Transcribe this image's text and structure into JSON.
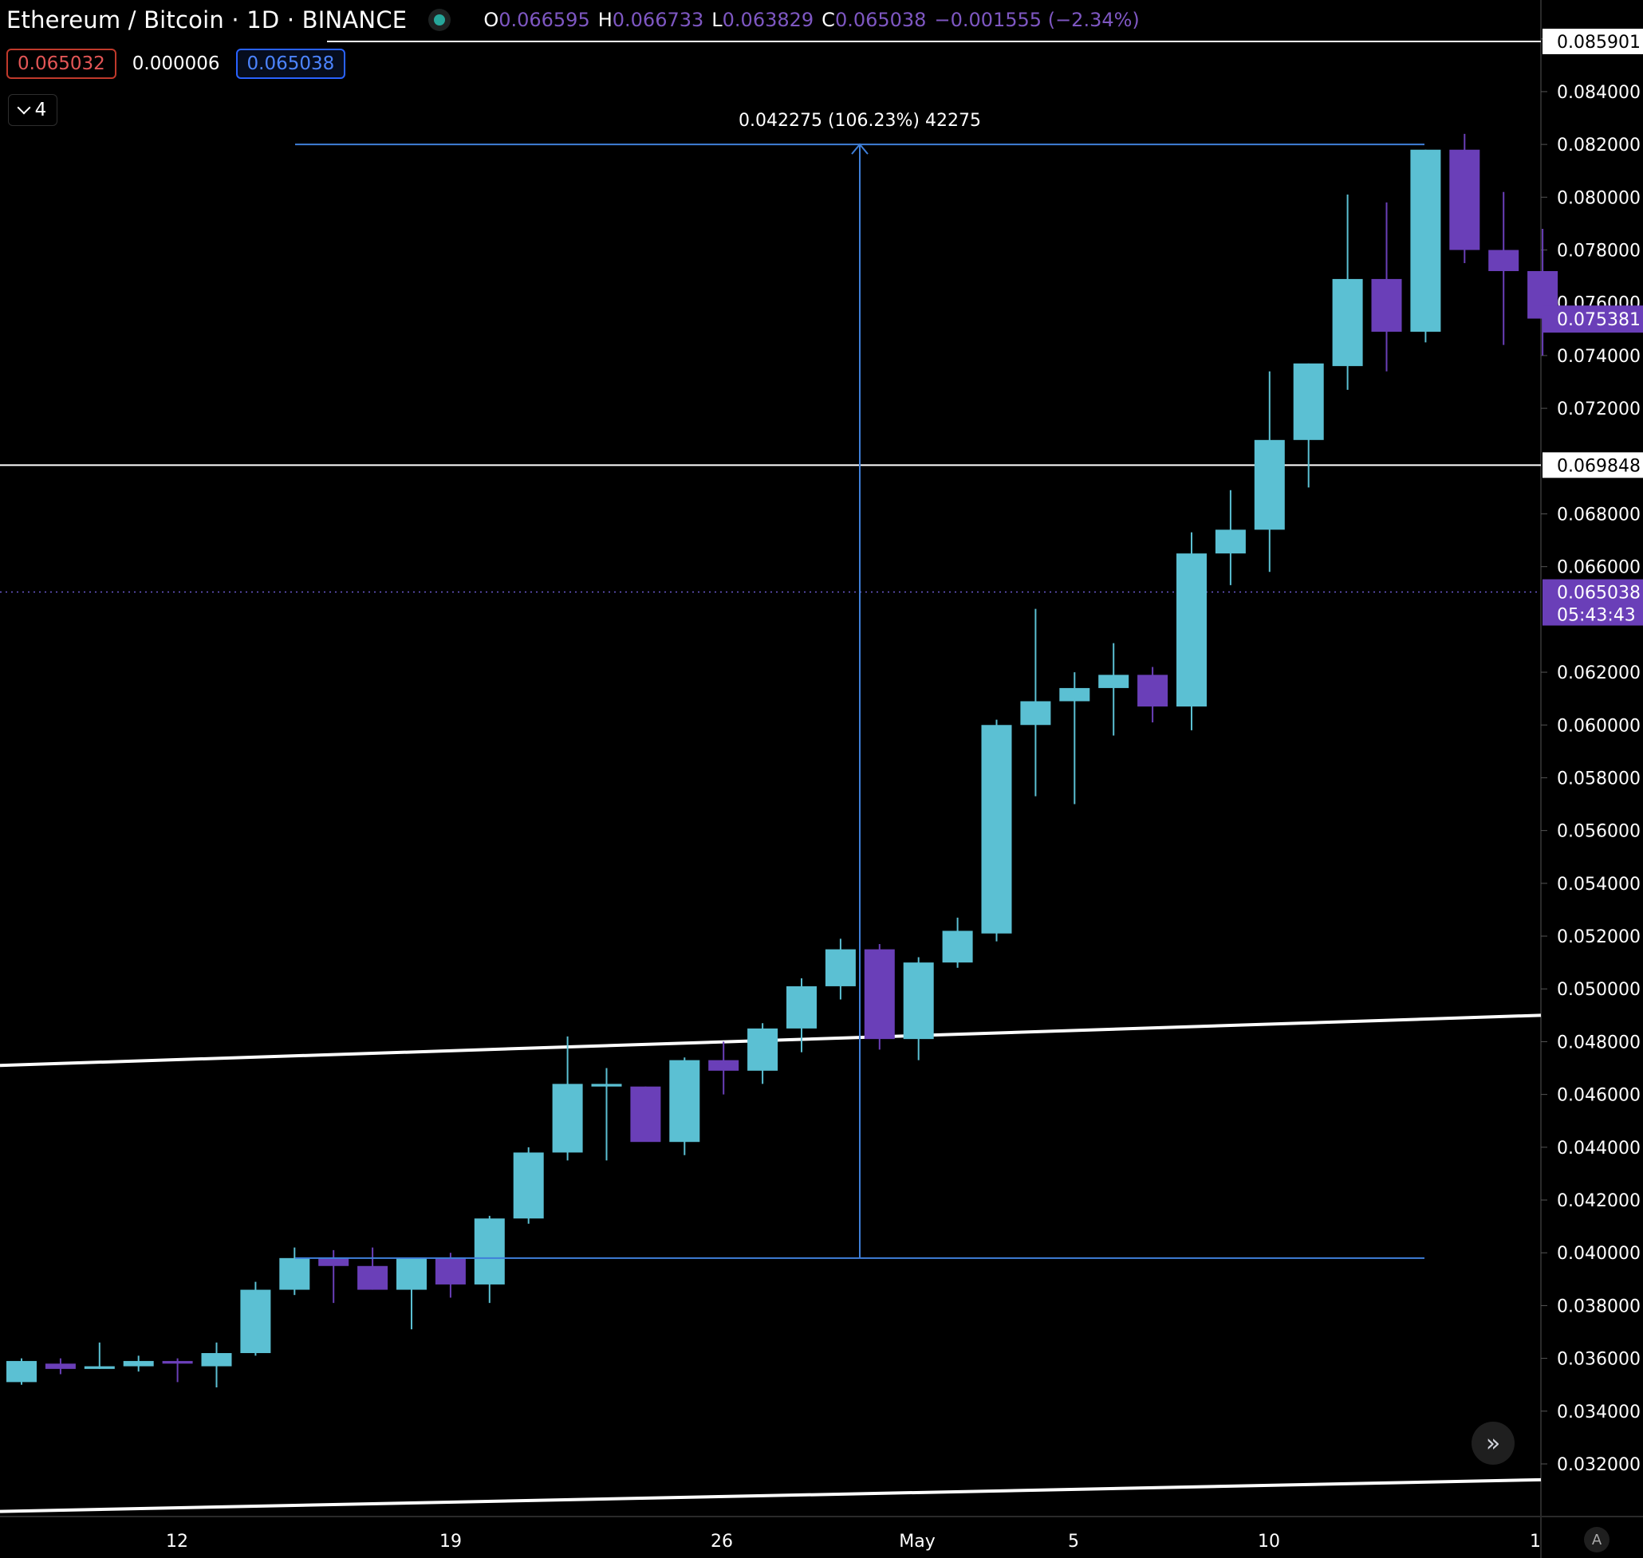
{
  "header": {
    "symbol": "Ethereum / Bitcoin",
    "sep1": "·",
    "interval": "1D",
    "sep2": "·",
    "exchange": "BINANCE",
    "open_label": "O",
    "open": "0.066595",
    "high_label": "H",
    "high": "0.066733",
    "low_label": "L",
    "low": "0.063829",
    "close_label": "C",
    "close": "0.065038",
    "change": "−0.001555 (−2.34%)"
  },
  "trade": {
    "bid": "0.065032",
    "spread": "0.000006",
    "ask": "0.065038"
  },
  "indicators_toggle": {
    "count": "4"
  },
  "colors": {
    "up": "#5bc0d3",
    "down": "#6a3fb8",
    "background": "#000000",
    "measure": "#3f7fd9",
    "price_tag": "#6a3fb8",
    "text": "#d1d4dc"
  },
  "icons": {
    "collapse": "chevron-down-icon",
    "scroll": "double-chevron-right-icon",
    "auto": "auto-scale-icon"
  },
  "chart_data": {
    "type": "candlestick",
    "x_labels": [
      "12",
      "19",
      "26",
      "May",
      "5",
      "10",
      "1"
    ],
    "ylim": [
      0.0305,
      0.0875
    ],
    "y_ticks": [
      "0.032000",
      "0.034000",
      "0.036000",
      "0.038000",
      "0.040000",
      "0.042000",
      "0.044000",
      "0.046000",
      "0.048000",
      "0.050000",
      "0.052000",
      "0.054000",
      "0.056000",
      "0.058000",
      "0.060000",
      "0.062000",
      "0.066000",
      "0.068000",
      "0.072000",
      "0.074000",
      "0.076000",
      "0.078000",
      "0.080000",
      "0.082000",
      "0.084000",
      "0.086000"
    ],
    "candles": [
      {
        "o": 0.0351,
        "h": 0.036,
        "l": 0.035,
        "c": 0.0359
      },
      {
        "o": 0.0358,
        "h": 0.036,
        "l": 0.0354,
        "c": 0.0356
      },
      {
        "o": 0.0356,
        "h": 0.0366,
        "l": 0.0356,
        "c": 0.0357
      },
      {
        "o": 0.0357,
        "h": 0.0361,
        "l": 0.0355,
        "c": 0.0359
      },
      {
        "o": 0.0359,
        "h": 0.036,
        "l": 0.0351,
        "c": 0.0358
      },
      {
        "o": 0.0357,
        "h": 0.0366,
        "l": 0.0349,
        "c": 0.0362
      },
      {
        "o": 0.0362,
        "h": 0.0389,
        "l": 0.0361,
        "c": 0.0386
      },
      {
        "o": 0.0386,
        "h": 0.0402,
        "l": 0.0384,
        "c": 0.0398
      },
      {
        "o": 0.0398,
        "h": 0.0401,
        "l": 0.0381,
        "c": 0.0395
      },
      {
        "o": 0.0395,
        "h": 0.0402,
        "l": 0.0386,
        "c": 0.0386
      },
      {
        "o": 0.0386,
        "h": 0.0398,
        "l": 0.0371,
        "c": 0.0398
      },
      {
        "o": 0.0398,
        "h": 0.04,
        "l": 0.0383,
        "c": 0.0388
      },
      {
        "o": 0.0388,
        "h": 0.0414,
        "l": 0.0381,
        "c": 0.0413
      },
      {
        "o": 0.0413,
        "h": 0.044,
        "l": 0.0411,
        "c": 0.0438
      },
      {
        "o": 0.0438,
        "h": 0.0482,
        "l": 0.0435,
        "c": 0.0464
      },
      {
        "o": 0.0463,
        "h": 0.047,
        "l": 0.0435,
        "c": 0.0464
      },
      {
        "o": 0.0463,
        "h": 0.0463,
        "l": 0.0443,
        "c": 0.0442
      },
      {
        "o": 0.0442,
        "h": 0.0474,
        "l": 0.0437,
        "c": 0.0473
      },
      {
        "o": 0.0473,
        "h": 0.048,
        "l": 0.046,
        "c": 0.0469
      },
      {
        "o": 0.0469,
        "h": 0.0487,
        "l": 0.0464,
        "c": 0.0485
      },
      {
        "o": 0.0485,
        "h": 0.0504,
        "l": 0.0476,
        "c": 0.0501
      },
      {
        "o": 0.0501,
        "h": 0.0519,
        "l": 0.0496,
        "c": 0.0515
      },
      {
        "o": 0.0515,
        "h": 0.0517,
        "l": 0.0477,
        "c": 0.0481
      },
      {
        "o": 0.0481,
        "h": 0.0512,
        "l": 0.0473,
        "c": 0.051
      },
      {
        "o": 0.051,
        "h": 0.0527,
        "l": 0.0508,
        "c": 0.0522
      },
      {
        "o": 0.0521,
        "h": 0.0602,
        "l": 0.0518,
        "c": 0.06
      },
      {
        "o": 0.06,
        "h": 0.0644,
        "l": 0.0573,
        "c": 0.0609
      },
      {
        "o": 0.0609,
        "h": 0.062,
        "l": 0.057,
        "c": 0.0614
      },
      {
        "o": 0.0614,
        "h": 0.0631,
        "l": 0.0596,
        "c": 0.0619
      },
      {
        "o": 0.0619,
        "h": 0.0622,
        "l": 0.0601,
        "c": 0.0607
      },
      {
        "o": 0.0607,
        "h": 0.0673,
        "l": 0.0598,
        "c": 0.0665
      },
      {
        "o": 0.0665,
        "h": 0.0689,
        "l": 0.0653,
        "c": 0.0674
      },
      {
        "o": 0.0674,
        "h": 0.0734,
        "l": 0.0658,
        "c": 0.0708
      },
      {
        "o": 0.0708,
        "h": 0.0737,
        "l": 0.069,
        "c": 0.0737
      },
      {
        "o": 0.0736,
        "h": 0.0801,
        "l": 0.0727,
        "c": 0.0769
      },
      {
        "o": 0.0769,
        "h": 0.0798,
        "l": 0.0734,
        "c": 0.0749
      },
      {
        "o": 0.0749,
        "h": 0.0818,
        "l": 0.0745,
        "c": 0.0818
      },
      {
        "o": 0.0818,
        "h": 0.0824,
        "l": 0.0775,
        "c": 0.078
      },
      {
        "o": 0.078,
        "h": 0.0802,
        "l": 0.0744,
        "c": 0.0772
      },
      {
        "o": 0.0772,
        "h": 0.0788,
        "l": 0.074,
        "c": 0.0754
      }
    ],
    "horizontal_lines": [
      {
        "price": 0.085901,
        "label": "0.085901"
      },
      {
        "price": 0.069848,
        "label": "0.069848"
      }
    ],
    "trend_lines": [
      {
        "p1": [
          0,
          0.0471
        ],
        "p2": [
          39.2,
          0.049
        ]
      },
      {
        "p1": [
          0,
          0.0302
        ],
        "p2": [
          39.2,
          0.0314
        ]
      }
    ],
    "measure": {
      "from_price": 0.0398,
      "to_price": 0.082,
      "from_bar": 7.3,
      "to_bar": 36.3,
      "arrow_bar": 21.8,
      "label": "0.042275 (106.23%) 42275"
    },
    "last_price": {
      "price": 0.065038,
      "label": "0.065038",
      "countdown": "05:43:43"
    },
    "current_bar": {
      "price": 0.075381,
      "label": "0.075381"
    }
  }
}
